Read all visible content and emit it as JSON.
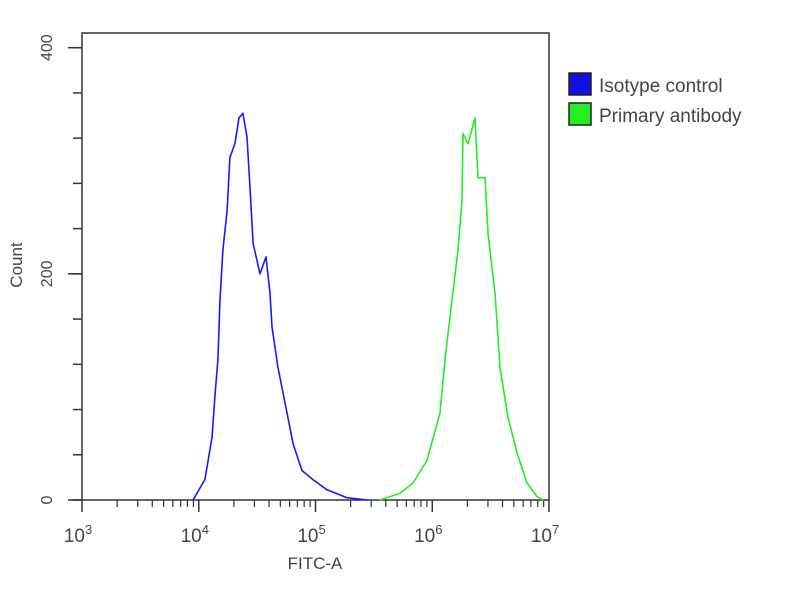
{
  "chart_data": {
    "type": "line",
    "title": "",
    "xlabel": "FITC-A",
    "ylabel": "Count",
    "xscale": "log",
    "xlim": [
      1000,
      10000000
    ],
    "ylim": [
      0,
      413
    ],
    "xticks": [
      {
        "value": 1000,
        "base": "10",
        "exp": "3"
      },
      {
        "value": 10000,
        "base": "10",
        "exp": "4"
      },
      {
        "value": 100000,
        "base": "10",
        "exp": "5"
      },
      {
        "value": 1000000,
        "base": "10",
        "exp": "6"
      },
      {
        "value": 10000000,
        "base": "10",
        "exp": "7"
      }
    ],
    "yticks": [
      {
        "value": 0,
        "label": "0"
      },
      {
        "value": 200,
        "label": "200"
      },
      {
        "value": 400,
        "label": "400"
      }
    ],
    "y_minor_step": 40,
    "grid": false,
    "legend_position": "right-top",
    "series": [
      {
        "name": "Isotype control",
        "color": "#1a1aff",
        "x": [
          8930,
          11300,
          13000,
          13800,
          14600,
          15200,
          16100,
          17500,
          18500,
          20400,
          22100,
          23900,
          25900,
          27500,
          29200,
          33500,
          37700,
          40800,
          42400,
          47700,
          57000,
          64100,
          76600,
          95200,
          125500,
          186000,
          276000
        ],
        "y": [
          0,
          18,
          56,
          94,
          124,
          177,
          221,
          256,
          303,
          315,
          338,
          342,
          321,
          276,
          227,
          200,
          215,
          183,
          153,
          117,
          77,
          50,
          26,
          18,
          9,
          2,
          0
        ]
      },
      {
        "name": "Primary antibody",
        "color": "#22ee22",
        "x": [
          357000,
          529000,
          684000,
          902000,
          1165000,
          1285000,
          1476000,
          1662000,
          1798000,
          1834000,
          2024000,
          2323000,
          2466000,
          2831000,
          3004000,
          3447000,
          3805000,
          4453000,
          5321000,
          6483000,
          7892000,
          8898000
        ],
        "y": [
          0,
          6,
          15,
          35,
          77,
          124,
          177,
          221,
          265,
          324,
          315,
          338,
          285,
          285,
          236,
          183,
          117,
          73,
          42,
          15,
          3,
          0
        ]
      }
    ]
  }
}
